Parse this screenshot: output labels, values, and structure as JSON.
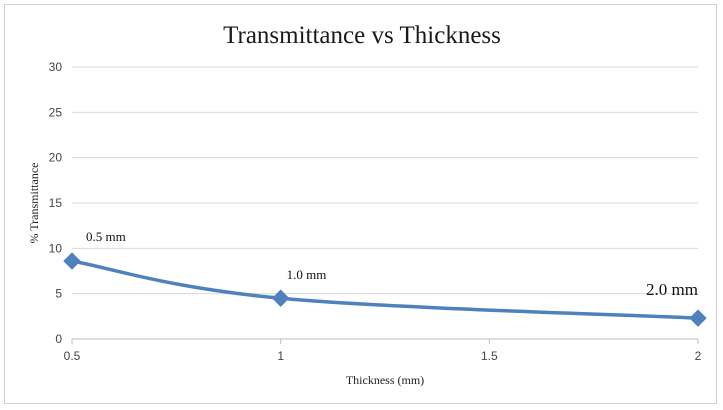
{
  "chart_data": {
    "type": "line",
    "title": "Transmittance vs Thickness",
    "xlabel": "Thickness (mm)",
    "ylabel": "% Transmittance",
    "xlim": [
      0.5,
      2
    ],
    "ylim": [
      0,
      30
    ],
    "x_ticks": [
      "0.5",
      "1",
      "1.5",
      "2"
    ],
    "y_ticks": [
      "0",
      "5",
      "10",
      "15",
      "20",
      "25",
      "30"
    ],
    "grid": "horizontal",
    "series": [
      {
        "name": "Transmittance",
        "x": [
          0.5,
          1.0,
          2.0
        ],
        "y": [
          8.6,
          4.5,
          2.3
        ],
        "color": "#4f81bd"
      }
    ],
    "annotations": [
      {
        "text": "0.5 mm",
        "x": 0.5,
        "y": 8.6
      },
      {
        "text": "1.0 mm",
        "x": 1.0,
        "y": 4.5
      },
      {
        "text": "2.0 mm",
        "x": 2.0,
        "y": 2.3
      }
    ]
  }
}
